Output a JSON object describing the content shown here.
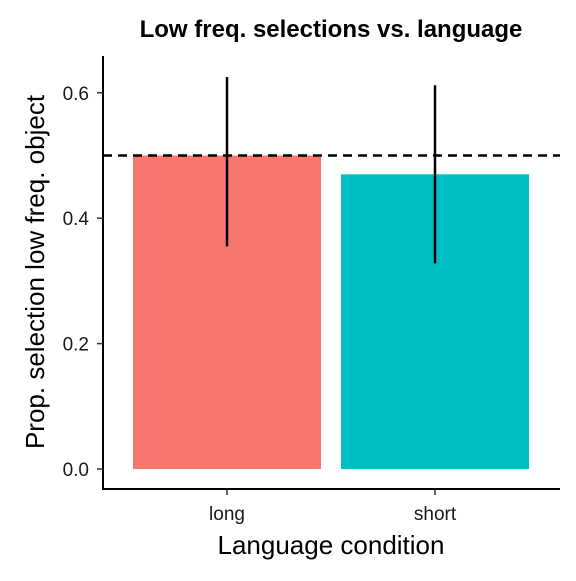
{
  "chart_data": {
    "type": "bar",
    "title": "Low freq. selections vs. language",
    "xlabel": "Language condition",
    "ylabel": "Prop. selection low freq. object",
    "categories": [
      "long",
      "short"
    ],
    "values": [
      0.5,
      0.47
    ],
    "error_bars": [
      {
        "low": 0.355,
        "high": 0.625
      },
      {
        "low": 0.328,
        "high": 0.612
      }
    ],
    "bar_colors": [
      "#F8766D",
      "#00BFC4"
    ],
    "reference_line": {
      "y": 0.5,
      "style": "dashed"
    },
    "yticks": [
      "0.0",
      "0.2",
      "0.4",
      "0.6"
    ],
    "ylim": [
      0,
      0.655
    ],
    "grid": false,
    "legend": "none"
  }
}
